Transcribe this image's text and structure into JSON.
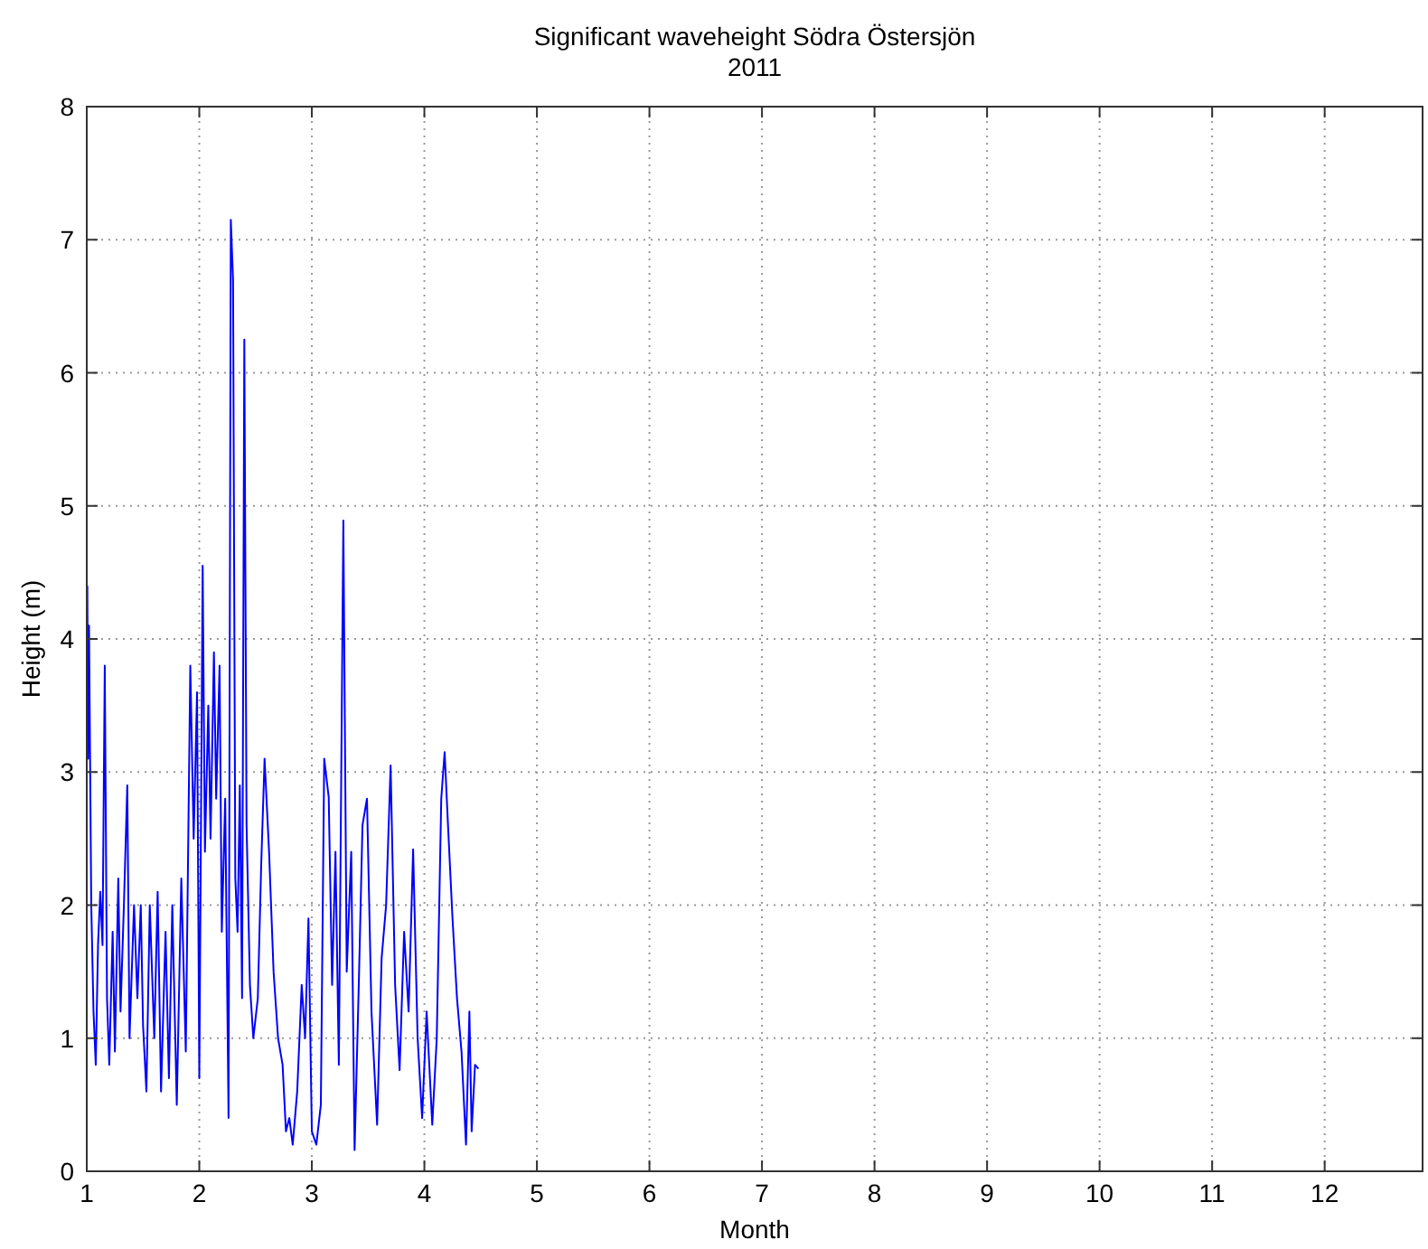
{
  "chart_data": {
    "type": "line",
    "title": "Significant waveheight Södra Östersjön",
    "subtitle": "2011",
    "xlabel": "Month",
    "ylabel": "Height (m)",
    "xlim": [
      1,
      12.87
    ],
    "xticks": [
      1,
      2,
      3,
      4,
      5,
      6,
      7,
      8,
      9,
      10,
      11,
      12
    ],
    "ylim": [
      0,
      8
    ],
    "yticks": [
      0,
      1,
      2,
      3,
      4,
      5,
      6,
      7,
      8
    ],
    "grid": true,
    "line_style": "solid",
    "marker": "none",
    "x": [
      1.005,
      1.012,
      1.02,
      1.04,
      1.06,
      1.08,
      1.1,
      1.12,
      1.14,
      1.16,
      1.18,
      1.2,
      1.23,
      1.25,
      1.28,
      1.3,
      1.33,
      1.36,
      1.38,
      1.42,
      1.45,
      1.48,
      1.5,
      1.53,
      1.56,
      1.6,
      1.63,
      1.66,
      1.7,
      1.73,
      1.76,
      1.8,
      1.84,
      1.88,
      1.92,
      1.95,
      1.98,
      2.0,
      2.03,
      2.05,
      2.08,
      2.1,
      2.13,
      2.15,
      2.18,
      2.2,
      2.23,
      2.26,
      2.28,
      2.3,
      2.32,
      2.34,
      2.36,
      2.38,
      2.4,
      2.42,
      2.45,
      2.48,
      2.52,
      2.55,
      2.58,
      2.62,
      2.66,
      2.7,
      2.74,
      2.77,
      2.8,
      2.83,
      2.87,
      2.91,
      2.94,
      2.97,
      3.0,
      3.04,
      3.08,
      3.11,
      3.15,
      3.18,
      3.21,
      3.24,
      3.28,
      3.31,
      3.35,
      3.38,
      3.42,
      3.45,
      3.49,
      3.53,
      3.58,
      3.62,
      3.66,
      3.7,
      3.74,
      3.78,
      3.82,
      3.86,
      3.9,
      3.94,
      3.98,
      4.02,
      4.07,
      4.11,
      4.15,
      4.18,
      4.21,
      4.25,
      4.29,
      4.33,
      4.37,
      4.4,
      4.42,
      4.45,
      4.48
    ],
    "series": [
      {
        "color": "#0000ff",
        "values": [
          4.4,
          3.1,
          4.1,
          2.0,
          1.2,
          0.8,
          1.7,
          2.1,
          1.7,
          3.8,
          1.3,
          0.8,
          1.8,
          0.9,
          2.2,
          1.2,
          2.0,
          2.9,
          1.0,
          2.0,
          1.3,
          2.0,
          1.1,
          0.6,
          2.0,
          1.0,
          2.1,
          0.6,
          1.8,
          0.7,
          2.0,
          0.5,
          2.2,
          0.9,
          3.8,
          2.5,
          3.6,
          0.7,
          4.55,
          2.4,
          3.5,
          2.5,
          3.9,
          2.8,
          3.8,
          1.8,
          2.8,
          0.4,
          7.15,
          6.7,
          2.2,
          1.8,
          2.9,
          1.3,
          6.25,
          2.6,
          1.4,
          1.0,
          1.3,
          2.3,
          3.1,
          2.4,
          1.5,
          1.0,
          0.8,
          0.3,
          0.4,
          0.2,
          0.6,
          1.4,
          1.0,
          1.9,
          0.3,
          0.2,
          0.5,
          3.1,
          2.81,
          1.4,
          2.4,
          0.8,
          4.89,
          1.5,
          2.4,
          0.16,
          1.5,
          2.6,
          2.8,
          1.2,
          0.35,
          1.6,
          2.0,
          3.05,
          1.4,
          0.76,
          1.8,
          1.2,
          2.42,
          1.0,
          0.4,
          1.2,
          0.35,
          1.0,
          2.8,
          3.15,
          2.6,
          1.9,
          1.3,
          0.9,
          0.2,
          1.2,
          0.3,
          0.8,
          0.77
        ]
      }
    ]
  }
}
